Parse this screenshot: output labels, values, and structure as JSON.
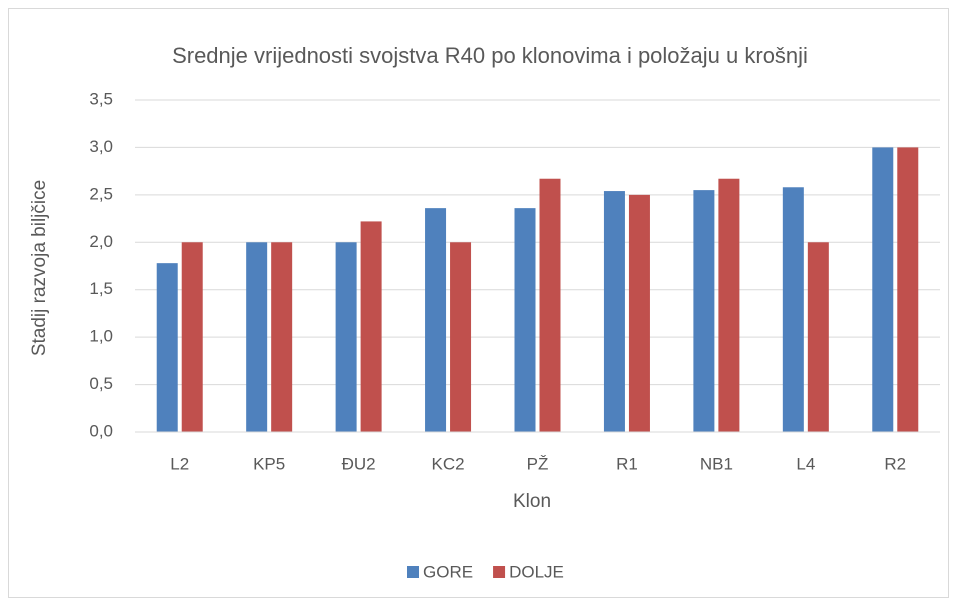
{
  "chart_data": {
    "type": "bar",
    "title": "Srednje vrijednosti svojstva R40 po klonovima i položaju u krošnji",
    "x_label": "Klon",
    "y_label": "Stadij razvoja bilјčice",
    "categories": [
      "L2",
      "KP5",
      "ĐU2",
      "KC2",
      "PŽ",
      "R1",
      "NB1",
      "L4",
      "R2"
    ],
    "series": [
      {
        "name": "GORE",
        "color": "#4f81bd",
        "values": [
          1.78,
          2.0,
          2.0,
          2.36,
          2.36,
          2.54,
          2.55,
          2.58,
          3.0
        ]
      },
      {
        "name": "DOLJE",
        "color": "#c0504d",
        "values": [
          2.0,
          2.0,
          2.22,
          2.0,
          2.67,
          2.5,
          2.67,
          2.0,
          3.0
        ]
      }
    ],
    "ylim": [
      0,
      3.5
    ],
    "yticks": [
      {
        "value": 0,
        "label": "0,0"
      },
      {
        "value": 0.5,
        "label": "0,5"
      },
      {
        "value": 1,
        "label": "1,0"
      },
      {
        "value": 1.5,
        "label": "1,5"
      },
      {
        "value": 2,
        "label": "2,0"
      },
      {
        "value": 2.5,
        "label": "2,5"
      },
      {
        "value": 3,
        "label": "3,0"
      },
      {
        "value": 3.5,
        "label": "3,5"
      }
    ],
    "grid": true,
    "legend": "bottom"
  }
}
